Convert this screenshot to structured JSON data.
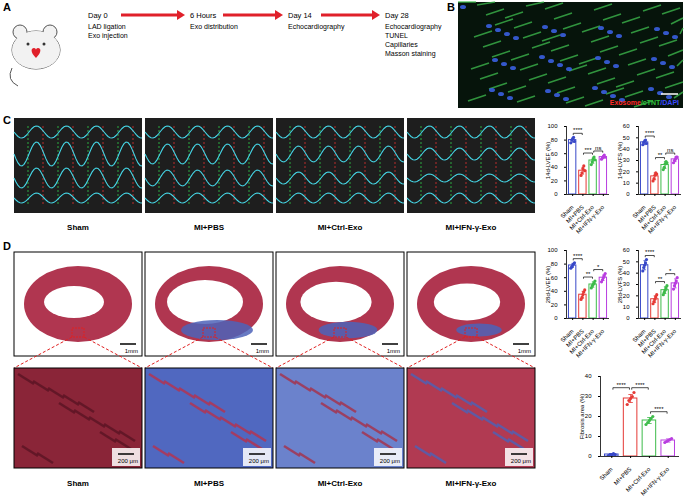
{
  "panels": {
    "A": {
      "label": "A",
      "steps": [
        {
          "title": "Day 0",
          "lines": [
            "LAD ligation",
            "Exo injection"
          ]
        },
        {
          "title": "6 Hours",
          "lines": [
            "Exo distribution"
          ]
        },
        {
          "title": "Day 14",
          "lines": [
            "Echocardiography"
          ]
        },
        {
          "title": "Day 28",
          "lines": [
            "Echocardiography",
            "TUNEL",
            "Capillaries",
            "Masson staining"
          ]
        }
      ]
    },
    "B": {
      "label": "B",
      "legend": [
        {
          "text": "Exosome",
          "color": "#ff2a2a"
        },
        {
          "text": "/cTNT",
          "color": "#2fc23c"
        },
        {
          "text": "/DAPI",
          "color": "#3b4bff"
        }
      ]
    },
    "C": {
      "label": "C",
      "images": [
        "Sham",
        "MI+PBS",
        "MI+Ctrl-Exo",
        "MI+IFN-γ-Exo"
      ]
    },
    "D": {
      "label": "D",
      "images": [
        {
          "name": "Sham",
          "scale_overview": "1mm",
          "scale_zoom": "200 μm"
        },
        {
          "name": "MI+PBS",
          "scale_overview": "1mm",
          "scale_zoom": "200 μm"
        },
        {
          "name": "MI+Ctrl-Exo",
          "scale_overview": "1mm",
          "scale_zoom": "200 μm"
        },
        {
          "name": "MI+IFN-γ-Exo",
          "scale_overview": "1mm",
          "scale_zoom": "200 μm"
        }
      ]
    }
  },
  "chart_data": [
    {
      "type": "bar",
      "y_label": "14d-LVEF (%)",
      "categories": [
        "Sham",
        "MI+PBS",
        "MI+Ctrl-Exo",
        "MI+IFN-γ-Exo"
      ],
      "colors": [
        "#3848c8",
        "#e53935",
        "#3dbb4a",
        "#b93de0"
      ],
      "values": [
        80,
        35,
        50,
        55
      ],
      "errors": [
        3,
        5,
        4,
        2
      ],
      "points": [
        [
          76,
          80,
          82,
          84,
          78
        ],
        [
          28,
          32,
          38,
          42,
          35
        ],
        [
          44,
          48,
          52,
          55,
          51
        ],
        [
          52,
          54,
          56,
          58,
          55
        ]
      ],
      "ylim": [
        0,
        100
      ],
      "yticks": [
        0,
        20,
        40,
        60,
        80,
        100
      ],
      "comparisons": [
        {
          "from": "Sham",
          "to": "MI+PBS",
          "label": "****"
        },
        {
          "from": "MI+PBS",
          "to": "MI+Ctrl-Exo",
          "label": "***"
        },
        {
          "from": "MI+Ctrl-Exo",
          "to": "MI+IFN-γ-Exo",
          "label": "ns"
        }
      ]
    },
    {
      "type": "bar",
      "y_label": "14d-LVFS (%)",
      "categories": [
        "Sham",
        "MI+PBS",
        "MI+Ctrl-Exo",
        "MI+IFN-γ-Exo"
      ],
      "colors": [
        "#3848c8",
        "#e53935",
        "#3dbb4a",
        "#b93de0"
      ],
      "values": [
        46,
        16,
        26,
        31
      ],
      "errors": [
        2,
        3,
        3,
        2
      ],
      "points": [
        [
          44,
          46,
          47,
          48,
          45
        ],
        [
          12,
          14,
          17,
          19,
          18
        ],
        [
          22,
          24,
          27,
          29,
          28
        ],
        [
          28,
          30,
          31,
          33,
          33
        ]
      ],
      "ylim": [
        0,
        60
      ],
      "yticks": [
        0,
        10,
        20,
        30,
        40,
        50,
        60
      ],
      "comparisons": [
        {
          "from": "Sham",
          "to": "MI+PBS",
          "label": "****"
        },
        {
          "from": "MI+PBS",
          "to": "MI+Ctrl-Exo",
          "label": "**"
        },
        {
          "from": "MI+Ctrl-Exo",
          "to": "MI+IFN-γ-Exo",
          "label": "ns"
        }
      ]
    },
    {
      "type": "bar",
      "y_label": "28d-LVEF (%)",
      "categories": [
        "Sham",
        "MI+PBS",
        "MI+Ctrl-Exo",
        "MI+IFN-γ-Exo"
      ],
      "colors": [
        "#3848c8",
        "#e53935",
        "#3dbb4a",
        "#b93de0"
      ],
      "values": [
        78,
        35,
        50,
        60
      ],
      "errors": [
        3,
        5,
        4,
        4
      ],
      "points": [
        [
          74,
          76,
          78,
          80,
          82
        ],
        [
          28,
          31,
          35,
          39,
          42
        ],
        [
          45,
          48,
          50,
          52,
          55
        ],
        [
          54,
          57,
          60,
          63,
          66
        ]
      ],
      "ylim": [
        0,
        100
      ],
      "yticks": [
        0,
        20,
        40,
        60,
        80,
        100
      ],
      "comparisons": [
        {
          "from": "Sham",
          "to": "MI+PBS",
          "label": "****"
        },
        {
          "from": "MI+PBS",
          "to": "MI+Ctrl-Exo",
          "label": "**"
        },
        {
          "from": "MI+Ctrl-Exo",
          "to": "MI+IFN-γ-Exo",
          "label": "*"
        }
      ]
    },
    {
      "type": "bar",
      "y_label": "28d-LVFS (%)",
      "categories": [
        "Sham",
        "MI+PBS",
        "MI+Ctrl-Exo",
        "MI+IFN-γ-Exo"
      ],
      "colors": [
        "#3848c8",
        "#e53935",
        "#3dbb4a",
        "#b93de0"
      ],
      "values": [
        47,
        17,
        25,
        31
      ],
      "errors": [
        4,
        3,
        3,
        4
      ],
      "points": [
        [
          42,
          45,
          47,
          49,
          52
        ],
        [
          13,
          15,
          17,
          19,
          21
        ],
        [
          21,
          23,
          25,
          27,
          29
        ],
        [
          26,
          29,
          31,
          33,
          36
        ]
      ],
      "ylim": [
        0,
        60
      ],
      "yticks": [
        0,
        10,
        20,
        30,
        40,
        50,
        60
      ],
      "comparisons": [
        {
          "from": "Sham",
          "to": "MI+PBS",
          "label": "****"
        },
        {
          "from": "MI+PBS",
          "to": "MI+Ctrl-Exo",
          "label": "**"
        },
        {
          "from": "MI+Ctrl-Exo",
          "to": "MI+IFN-γ-Exo",
          "label": "*"
        }
      ]
    },
    {
      "type": "bar",
      "y_label": "Fibrosis area (%)",
      "categories": [
        "Sham",
        "MI+PBS",
        "MI+Ctrl-Exo",
        "MI+IFN-γ-Exo"
      ],
      "colors": [
        "#3848c8",
        "#e53935",
        "#3dbb4a",
        "#b93de0"
      ],
      "values": [
        1,
        29,
        18,
        8
      ],
      "errors": [
        0.5,
        2,
        1.5,
        0.8
      ],
      "points": [
        [
          0.5,
          1,
          1,
          1.5,
          1
        ],
        [
          26,
          28,
          29,
          30,
          32
        ],
        [
          16,
          17,
          18,
          19,
          20
        ],
        [
          7,
          7.5,
          8,
          8.5,
          9
        ]
      ],
      "ylim": [
        0,
        40
      ],
      "yticks": [
        0,
        10,
        20,
        30,
        40
      ],
      "comparisons": [
        {
          "from": "Sham",
          "to": "MI+PBS",
          "label": "****"
        },
        {
          "from": "MI+PBS",
          "to": "MI+Ctrl-Exo",
          "label": "****"
        },
        {
          "from": "MI+Ctrl-Exo",
          "to": "MI+IFN-γ-Exo",
          "label": "****"
        }
      ]
    }
  ]
}
